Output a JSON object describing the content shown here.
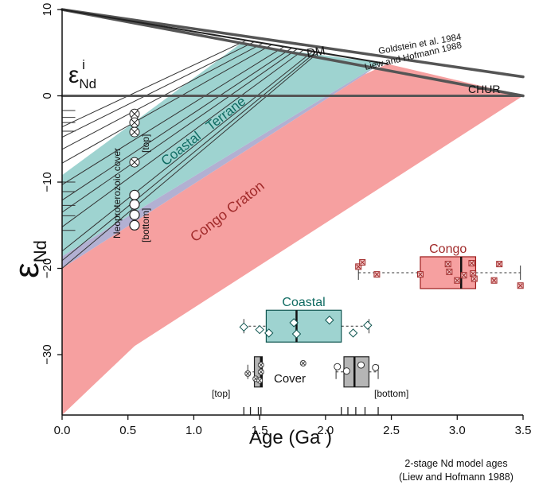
{
  "chart_data": {
    "type": "scatter",
    "xlabel": "Age  (Ga )",
    "xlim": [
      0,
      3.5
    ],
    "ylim": [
      -37,
      10
    ],
    "xticks": [
      0.0,
      0.5,
      1.0,
      1.5,
      2.0,
      2.5,
      3.0,
      3.5
    ],
    "xtick_labels": [
      "0.0",
      "0.5",
      "1.0",
      "1.5",
      "2.0",
      "2.5",
      "3.0",
      "3.5"
    ],
    "yticks": [
      10,
      0,
      -10,
      -20,
      -30
    ],
    "ytick_labels": [
      "10",
      "0",
      "−10",
      "−20",
      "−30"
    ],
    "ylabel_main": "ε",
    "ylabel_sub": "Nd",
    "inset_label": {
      "main": "ε",
      "sub": "Nd",
      "sup": "i"
    },
    "colors": {
      "coastal": "#9ed3d0",
      "congo": "#f6a0a0",
      "cover": "#b5b5b5",
      "ref_line": "#555555",
      "teal_text": "#0f6b62",
      "red_text": "#a12a2a"
    },
    "reference_lines": {
      "DM": {
        "label": "DM",
        "points": [
          [
            0,
            10
          ],
          [
            2.47,
            3.7
          ]
        ]
      },
      "Goldstein": {
        "label": "Goldstein et al. 1984",
        "points": [
          [
            0,
            10
          ],
          [
            3.5,
            2.2
          ]
        ]
      },
      "Liew": {
        "label": "Liew and Hofmann 1988",
        "points": [
          [
            0,
            10
          ],
          [
            3.5,
            0
          ]
        ]
      },
      "CHUR": {
        "label": "CHUR",
        "points": [
          [
            0,
            0
          ],
          [
            3.5,
            0
          ]
        ]
      }
    },
    "regions": {
      "congo_craton": {
        "label": "Congo Craton",
        "polygon": [
          [
            0,
            -20
          ],
          [
            2.3,
            2.5
          ],
          [
            2.47,
            3.7
          ],
          [
            3.5,
            0
          ],
          [
            0.55,
            -29
          ],
          [
            0,
            -37
          ]
        ]
      },
      "coastal_terrane": {
        "label": "Coastal   Terrane",
        "polygon": [
          [
            0,
            -9.2
          ],
          [
            1.35,
            6
          ],
          [
            2.42,
            3.8
          ],
          [
            0,
            -18.6
          ]
        ]
      },
      "coastal_overlap": {
        "polygon": [
          [
            0,
            -18.6
          ],
          [
            2.42,
            3.8
          ],
          [
            2.3,
            2.5
          ],
          [
            0,
            -20
          ]
        ]
      }
    },
    "evolution_line_origins": [
      -3.6,
      -4.8,
      -6.2,
      -7.8,
      -10.3,
      -12.1,
      -13.5,
      -15.2,
      -18,
      -19.1,
      -20
    ],
    "stub_line_ends": [
      -1.7,
      -2.5,
      -3.1,
      -4.1,
      -10,
      -11.1,
      -12.7,
      -13.9,
      -15.6
    ],
    "neoproterozoic_cover": {
      "label": "Neoproterozoic cover",
      "top_label": "[top]",
      "bottom_label": "[bottom]",
      "age": 0.55,
      "crossed": [
        -2.1,
        -3.1,
        -4.2,
        -7.7
      ],
      "open": [
        -11.5,
        -12.6,
        -13.8,
        -15
      ]
    },
    "boxplots": [
      {
        "name": "Congo",
        "label_color": "#a12a2a",
        "fill": "#f6a0a0",
        "stroke": "#9c1c1c",
        "y": -20.5,
        "min": 2.25,
        "q1": 2.72,
        "median": 3.03,
        "q3": 3.14,
        "max": 3.48,
        "points": [
          [
            2.25,
            -19.8
          ],
          [
            2.28,
            -19.3
          ],
          [
            2.39,
            -20.7
          ],
          [
            2.72,
            -20.7
          ],
          [
            2.93,
            -19.5
          ],
          [
            2.94,
            -20.4
          ],
          [
            3.0,
            -21.4
          ],
          [
            3.11,
            -19.4
          ],
          [
            3.12,
            -20.6
          ],
          [
            3.13,
            -21.2
          ],
          [
            3.28,
            -21.4
          ],
          [
            3.32,
            -19.5
          ],
          [
            3.48,
            -22
          ],
          [
            3.05,
            -20.8
          ]
        ],
        "marker": "cross"
      },
      {
        "name": "Coastal",
        "label_color": "#0f6b62",
        "fill": "#9ed3d0",
        "stroke": "#0f5550",
        "y": -26.7,
        "min": 1.38,
        "q1": 1.55,
        "median": 1.78,
        "q3": 2.12,
        "max": 2.33,
        "points": [
          [
            1.38,
            -26.8
          ],
          [
            1.5,
            -27.1
          ],
          [
            1.57,
            -27.5
          ],
          [
            1.76,
            -26.3
          ],
          [
            1.78,
            -27.6
          ],
          [
            2.03,
            -26
          ],
          [
            2.21,
            -27.5
          ],
          [
            2.32,
            -26.6
          ]
        ],
        "marker": "diamond"
      },
      {
        "name": "",
        "label_color": "#333333",
        "fill": "#b5b5b5",
        "stroke": "#222222",
        "y": -32,
        "min": 1.41,
        "q1": 1.46,
        "median": 1.51,
        "q3": 1.52,
        "max": 1.52,
        "points": [
          [
            1.41,
            -32.2
          ],
          [
            1.47,
            -32.8
          ],
          [
            1.51,
            -31.2
          ],
          [
            1.51,
            -32
          ],
          [
            1.5,
            -33
          ]
        ],
        "marker": "cross"
      },
      {
        "name": "",
        "label_color": "#333333",
        "fill": "#b5b5b5",
        "stroke": "#222222",
        "y": -32,
        "min": 2.08,
        "q1": 2.14,
        "median": 2.22,
        "q3": 2.33,
        "max": 2.4,
        "points": [
          [
            2.09,
            -31.4
          ],
          [
            2.16,
            -31.9
          ],
          [
            2.27,
            -31.2
          ],
          [
            2.38,
            -31.5
          ]
        ],
        "marker": "circle"
      }
    ],
    "cover_labels": {
      "cover": "Cover",
      "top": "[top]",
      "bottom": "[bottom]"
    },
    "cover_label_cross_x": 1.83,
    "rug_ticks": [
      1.38,
      1.43,
      1.49,
      1.51,
      2.12,
      2.17,
      2.23,
      2.3,
      2.4
    ],
    "footnote_line1": "2-stage Nd model ages",
    "footnote_line2": "(Liew and Hofmann 1988)"
  }
}
